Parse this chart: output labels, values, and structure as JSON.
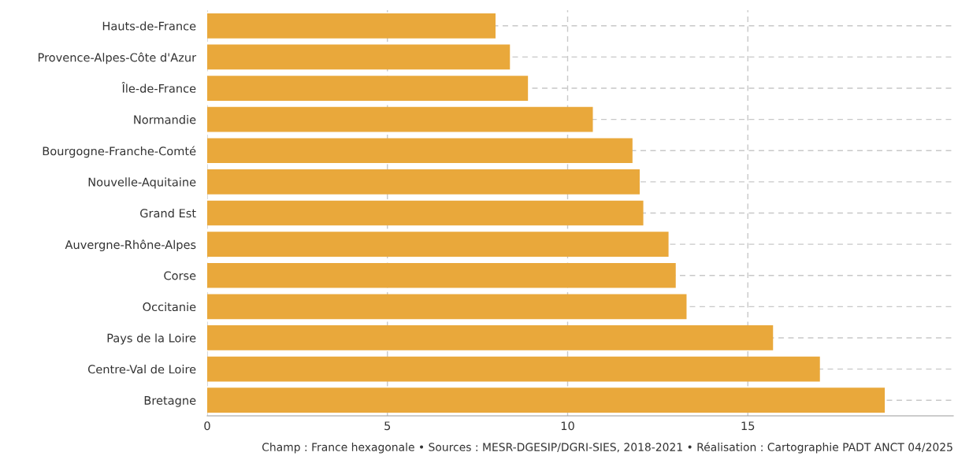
{
  "chart_data": {
    "type": "bar",
    "orientation": "horizontal",
    "categories": [
      "Hauts-de-France",
      "Provence-Alpes-Côte d'Azur",
      "Île-de-France",
      "Normandie",
      "Bourgogne-Franche-Comté",
      "Nouvelle-Aquitaine",
      "Grand Est",
      "Auvergne-Rhône-Alpes",
      "Corse",
      "Occitanie",
      "Pays de la Loire",
      "Centre-Val de Loire",
      "Bretagne"
    ],
    "values": [
      8.0,
      8.4,
      8.9,
      10.7,
      11.8,
      12.0,
      12.1,
      12.8,
      13.0,
      13.3,
      15.7,
      17.0,
      18.8
    ],
    "color": "#e9a83b",
    "xlim": [
      0,
      20.7
    ],
    "xticks": [
      0,
      5,
      10,
      15
    ],
    "grid": true,
    "line_style": "dashed",
    "annotations": [
      "Champ : France hexagonale • Sources : MESR-DGESIP/DGRI-SIES, 2018-2021 • Réalisation : Cartographie PADT ANCT 04/2025"
    ]
  }
}
